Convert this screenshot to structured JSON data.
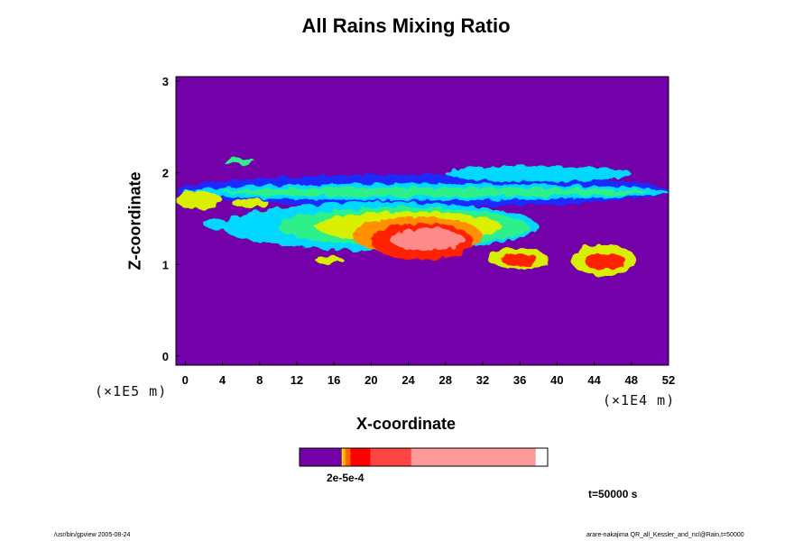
{
  "chart_data": {
    "type": "heatmap",
    "title": "All Rains Mixing Ratio",
    "xlabel": "X-coordinate",
    "ylabel": "Z-coordinate",
    "x_units": "(×1E4 m)",
    "y_units": "(×1E5 m)",
    "xlim": [
      -1,
      52
    ],
    "ylim": [
      -0.1,
      3.05
    ],
    "x_ticks": [
      "0",
      "4",
      "8",
      "12",
      "16",
      "20",
      "24",
      "28",
      "32",
      "36",
      "40",
      "44",
      "48",
      "52"
    ],
    "y_ticks": [
      "0",
      "1",
      "2",
      "3"
    ],
    "background_color": "#7300a8",
    "colorbar": {
      "label": "2e-5e-4",
      "bands": [
        {
          "width": 0.17,
          "color": "#7400a8"
        },
        {
          "width": 0.005,
          "color": "#f7f000"
        },
        {
          "width": 0.01,
          "color": "#ffb000"
        },
        {
          "width": 0.02,
          "color": "#ff6a00"
        },
        {
          "width": 0.08,
          "color": "#ff0000"
        },
        {
          "width": 0.165,
          "color": "#ff4444"
        },
        {
          "width": 0.5,
          "color": "#ff9a9a"
        }
      ]
    },
    "features": [
      {
        "x0": -1,
        "x1": 52,
        "z0": 1.63,
        "z1": 1.98,
        "level": 1
      },
      {
        "x0": 0,
        "x1": 52,
        "z0": 1.7,
        "z1": 1.88,
        "level": 2
      },
      {
        "x0": 4,
        "x1": 50,
        "z0": 1.74,
        "z1": 1.84,
        "level": 3
      },
      {
        "x0": 28,
        "x1": 48,
        "z0": 1.9,
        "z1": 2.08,
        "level": 2
      },
      {
        "x0": 4,
        "x1": 7.5,
        "z0": 2.1,
        "z1": 2.16,
        "level": 3
      },
      {
        "x0": 4,
        "x1": 38,
        "z0": 1.15,
        "z1": 1.68,
        "level": 2
      },
      {
        "x0": 10,
        "x1": 37,
        "z0": 1.2,
        "z1": 1.62,
        "level": 3
      },
      {
        "x0": 14,
        "x1": 34,
        "z0": 1.25,
        "z1": 1.58,
        "level": 4
      },
      {
        "x0": 18,
        "x1": 32,
        "z0": 1.1,
        "z1": 1.52,
        "level": 5
      },
      {
        "x0": 20,
        "x1": 31,
        "z0": 1.05,
        "z1": 1.45,
        "level": 6
      },
      {
        "x0": 22,
        "x1": 30,
        "z0": 1.15,
        "z1": 1.4,
        "level": 7
      },
      {
        "x0": 2,
        "x1": 4.5,
        "z0": 1.38,
        "z1": 1.5,
        "level": 2
      },
      {
        "x0": 14,
        "x1": 17,
        "z0": 1.0,
        "z1": 1.1,
        "level": 4
      },
      {
        "x0": 32.5,
        "x1": 39,
        "z0": 0.95,
        "z1": 1.18,
        "level": 4
      },
      {
        "x0": 34,
        "x1": 38,
        "z0": 0.98,
        "z1": 1.12,
        "level": 6
      },
      {
        "x0": 41.5,
        "x1": 48.5,
        "z0": 0.88,
        "z1": 1.22,
        "level": 4
      },
      {
        "x0": 43,
        "x1": 47.5,
        "z0": 0.94,
        "z1": 1.12,
        "level": 6
      },
      {
        "x0": -1,
        "x1": 4,
        "z0": 1.6,
        "z1": 1.8,
        "level": 4
      },
      {
        "x0": 5,
        "x1": 9,
        "z0": 1.62,
        "z1": 1.72,
        "level": 4
      }
    ],
    "level_colors": [
      "#7300a8",
      "#1a2cff",
      "#00d8ff",
      "#2ef08a",
      "#d8f000",
      "#ff9000",
      "#ff2200",
      "#ff8a8a"
    ]
  },
  "time_label": "t=50000 s",
  "footer_left": "/usr/bin/gpview 2005-08-24",
  "footer_right": "arare-nakajima  QR_all_Kessler_and_ncl@Rain,t=50000"
}
